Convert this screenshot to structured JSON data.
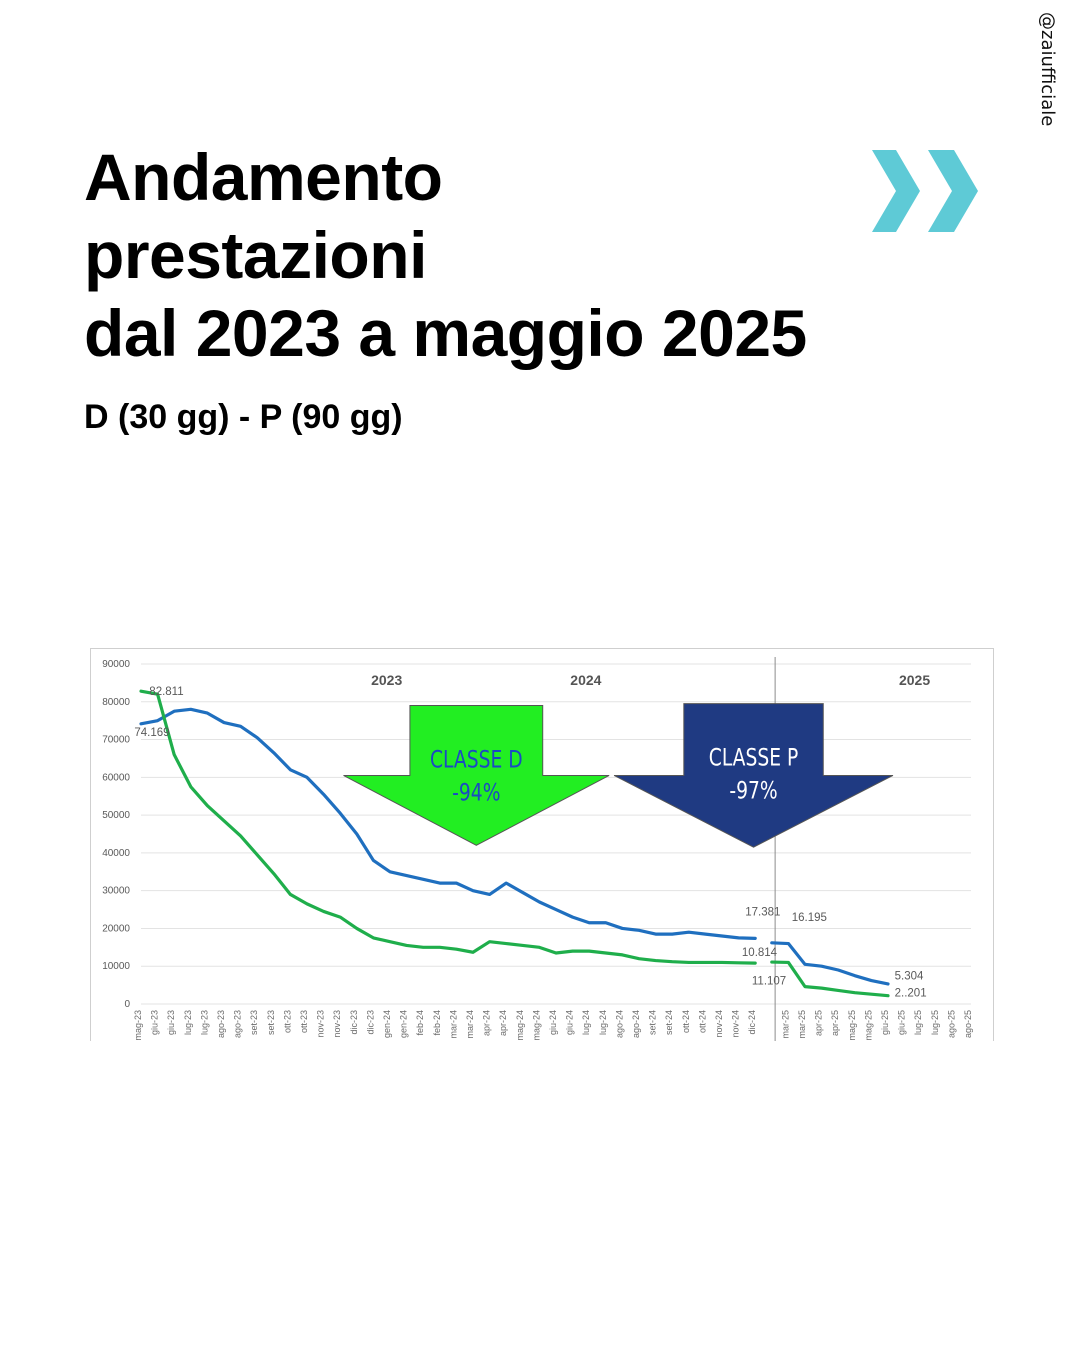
{
  "handle": "@zaiufficiale",
  "title_lines": [
    "Andamento",
    "prestazioni",
    "dal 2023 a maggio 2025"
  ],
  "subtitle": "D (30 gg) - P (90 gg)",
  "accent_color": "#5ecad6",
  "chart_data": {
    "type": "line",
    "ylim": [
      0,
      90000
    ],
    "yticks": [
      0,
      10000,
      20000,
      30000,
      40000,
      50000,
      60000,
      70000,
      80000,
      90000
    ],
    "grid": true,
    "legend": "none",
    "year_labels": [
      "2023",
      "2024",
      "2025"
    ],
    "categories": [
      "mag-23",
      "giu-23",
      "giu-23",
      "lug-23",
      "lug-23",
      "ago-23",
      "ago-23",
      "set-23",
      "set-23",
      "ott-23",
      "ott-23",
      "nov-23",
      "nov-23",
      "dic-23",
      "dic-23",
      "gen-24",
      "gen-24",
      "feb-24",
      "feb-24",
      "mar-24",
      "mar-24",
      "apr-24",
      "apr-24",
      "mag-24",
      "mag-24",
      "giu-24",
      "giu-24",
      "lug-24",
      "lug-24",
      "ago-24",
      "ago-24",
      "set-24",
      "set-24",
      "ott-24",
      "ott-24",
      "nov-24",
      "nov-24",
      "dic-24",
      "",
      "mar-25",
      "mar-25",
      "apr-25",
      "apr-25",
      "mag-25",
      "mag-25",
      "giu-25",
      "giu-25",
      "lug-25",
      "lug-25",
      "ago-25",
      "ago-25"
    ],
    "series": [
      {
        "color": "#1f6fbf",
        "segments": [
          {
            "x0": 0,
            "values": [
              74169,
              75000,
              77500,
              78000,
              77000,
              74500,
              73500,
              70500,
              66500,
              62000,
              60000,
              55500,
              50500,
              45000,
              38000,
              35000,
              34000,
              33000,
              32000,
              32000,
              30000,
              29000,
              32000,
              29500,
              27000,
              25000,
              23000,
              21500,
              21500,
              20000,
              19500,
              18500,
              18500,
              19000,
              18500,
              18000,
              17500,
              17381
            ]
          },
          {
            "x0": 38,
            "values": [
              16195,
              16000,
              10500,
              10000,
              9000,
              7500,
              6200,
              5304
            ]
          }
        ]
      },
      {
        "color": "#1fae4b",
        "segments": [
          {
            "x0": 0,
            "values": [
              82811,
              82000,
              66000,
              57500,
              52500,
              48500,
              44500,
              39500,
              34500,
              29000,
              26500,
              24500,
              23000,
              20000,
              17500,
              16500,
              15500,
              15000,
              15000,
              14500,
              13700,
              16500,
              16000,
              15500,
              15000,
              13500,
              14000,
              14000,
              13500,
              13000,
              12000,
              11500,
              11200,
              11000,
              11000,
              11000,
              10900,
              10814
            ]
          },
          {
            "x0": 38,
            "values": [
              11107,
              11000,
              4600,
              4200,
              3600,
              3000,
              2600,
              2201
            ]
          }
        ]
      }
    ],
    "data_labels": [
      {
        "text": "82.811",
        "x": 0.5,
        "y": 82811
      },
      {
        "text": "74.169",
        "x": -0.4,
        "y": 72000
      },
      {
        "text": "17.381",
        "x": 36.4,
        "y": 24500
      },
      {
        "text": "10.814",
        "x": 36.2,
        "y": 13800
      },
      {
        "text": "16.195",
        "x": 39.2,
        "y": 23000
      },
      {
        "text": "11.107",
        "x": 36.8,
        "y": 6200
      },
      {
        "text": "5.304",
        "x": 45.4,
        "y": 7500
      },
      {
        "text": "2..201",
        "x": 45.4,
        "y": 3000
      }
    ],
    "annotations": [
      {
        "text_lines": [
          "CLASSE D",
          "-94%"
        ],
        "fill": "#22ee22",
        "text_color": "#1b49c4",
        "x_center": 20.2,
        "x_half_width": 8.0,
        "body_half_width": 4.0,
        "y_top": 79000,
        "y_shoulder": 60500,
        "y_tip": 42000
      },
      {
        "text_lines": [
          "CLASSE P",
          "-97%"
        ],
        "fill": "#1f3a82",
        "text_color": "#ffffff",
        "x_center": 36.9,
        "x_half_width": 8.4,
        "body_half_width": 4.2,
        "y_top": 79500,
        "y_shoulder": 60500,
        "y_tip": 41500
      }
    ],
    "year_divider_x": 38.2
  }
}
